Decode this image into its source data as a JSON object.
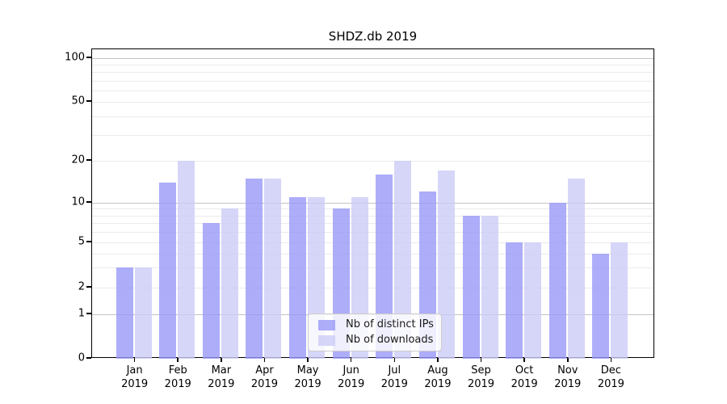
{
  "title": "SHDZ.db 2019",
  "chart_data": {
    "type": "bar",
    "title": "SHDZ.db 2019",
    "categories": [
      "Jan",
      "Feb",
      "Mar",
      "Apr",
      "May",
      "Jun",
      "Jul",
      "Aug",
      "Sep",
      "Oct",
      "Nov",
      "Dec"
    ],
    "category_year": "2019",
    "series": [
      {
        "name": "Nb of distinct IPs",
        "color": "#9999f8",
        "opacity": 0.8,
        "values": [
          3,
          14,
          7,
          15,
          11,
          9,
          16,
          12,
          8,
          5,
          10,
          4
        ]
      },
      {
        "name": "Nb of downloads",
        "color": "#ccccf6",
        "opacity": 0.8,
        "values": [
          3,
          20,
          9,
          15,
          11,
          11,
          20,
          17,
          8,
          5,
          15,
          5
        ]
      }
    ],
    "y_axis": {
      "scale": "symlog",
      "tick_values": [
        0,
        1,
        2,
        5,
        10,
        20,
        50,
        100
      ],
      "tick_labels": [
        "0",
        "1",
        "2",
        "5",
        "10",
        "20",
        "50",
        "100"
      ],
      "grid_major_values": [
        1,
        10,
        100
      ],
      "grid_minor_values": [
        2,
        3,
        4,
        5,
        6,
        7,
        8,
        9,
        20,
        30,
        40,
        50,
        60,
        70,
        80,
        90
      ],
      "ylim": [
        0,
        120
      ]
    },
    "legend": {
      "position": "lower center",
      "items": [
        "Nb of distinct IPs",
        "Nb of downloads"
      ]
    },
    "grid": "both"
  },
  "colors": {
    "grid_major": "#c3c3c3",
    "grid_minor": "#ebebeb",
    "spine": "#000000",
    "text": "#000000",
    "legend_border": "#cccccc"
  }
}
